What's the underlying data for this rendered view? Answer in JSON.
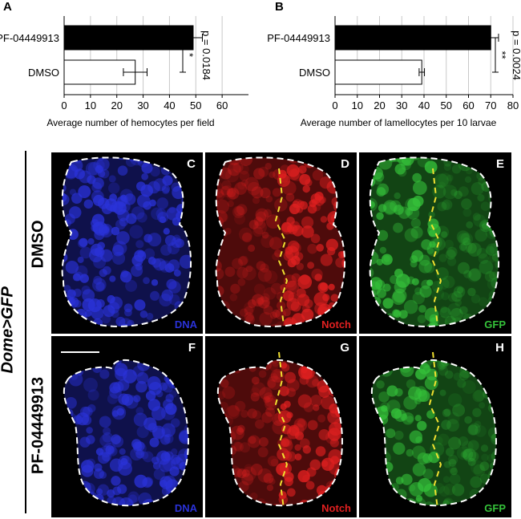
{
  "chart_data": [
    {
      "panel": "A",
      "type": "bar",
      "orientation": "horizontal",
      "categories": [
        "PF-04449913",
        "DMSO"
      ],
      "values": [
        49,
        27
      ],
      "errors": [
        3.5,
        4.5
      ],
      "bar_colors": [
        "#000000",
        "#ffffff"
      ],
      "xlabel": "Average number of hemocytes per field",
      "xlim": [
        0,
        70
      ],
      "xticks": [
        0,
        10,
        20,
        30,
        40,
        50,
        60
      ],
      "significance": "*",
      "pvalue": "p = 0.0184"
    },
    {
      "panel": "B",
      "type": "bar",
      "orientation": "horizontal",
      "categories": [
        "PF-04449913",
        "DMSO"
      ],
      "values": [
        70,
        39
      ],
      "errors": [
        3.5,
        1.2
      ],
      "bar_colors": [
        "#000000",
        "#ffffff"
      ],
      "xlabel": "Average number of lamellocytes per 10 larvae",
      "xlim": [
        0,
        80
      ],
      "xticks": [
        0,
        10,
        20,
        30,
        40,
        50,
        60,
        70,
        80
      ],
      "significance": "**",
      "pvalue": "p = 0.0024"
    }
  ],
  "figure": {
    "side_label": "Dome>GFP",
    "rows": [
      {
        "label": "DMSO",
        "panels": [
          {
            "letter": "C",
            "channel": "DNA",
            "color": "#2a32d8"
          },
          {
            "letter": "D",
            "channel": "Notch",
            "color": "#e02020"
          },
          {
            "letter": "E",
            "channel": "GFP",
            "color": "#35c23a"
          }
        ]
      },
      {
        "label": "PF-04449913",
        "panels": [
          {
            "letter": "F",
            "channel": "DNA",
            "color": "#2a32d8"
          },
          {
            "letter": "G",
            "channel": "Notch",
            "color": "#e02020"
          },
          {
            "letter": "H",
            "channel": "GFP",
            "color": "#35c23a"
          }
        ]
      }
    ]
  }
}
